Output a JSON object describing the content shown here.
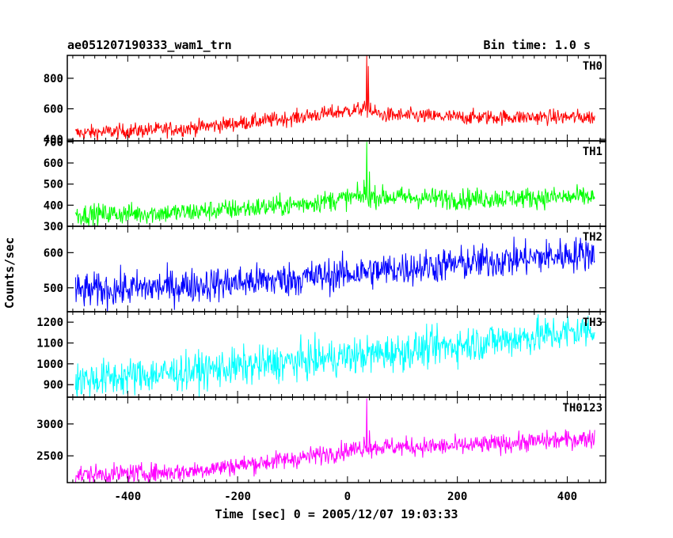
{
  "header": {
    "title": "ae051207190333_wam1_trn",
    "bin_time": "Bin time: 1.0 s"
  },
  "chart_data": {
    "type": "line",
    "xlabel": "Time [sec] 0 = 2005/12/07 19:03:33",
    "ylabel": "Counts/sec",
    "xlim": [
      -510,
      470
    ],
    "x_ticks": [
      -400,
      -200,
      0,
      200,
      400
    ],
    "x_range_data": [
      -495,
      450
    ],
    "panels": [
      {
        "name": "TH0",
        "color": "#ff0000",
        "ylim": [
          390,
          950
        ],
        "y_ticks": [
          400,
          600,
          800
        ],
        "trend": [
          [
            -495,
            440
          ],
          [
            -300,
            470
          ],
          [
            -100,
            540
          ],
          [
            30,
            600
          ],
          [
            60,
            560
          ],
          [
            200,
            545
          ],
          [
            450,
            545
          ]
        ],
        "noise": 25,
        "spike": [
          [
            30,
            620
          ],
          [
            35,
            950
          ],
          [
            38,
            880
          ],
          [
            42,
            640
          ]
        ]
      },
      {
        "name": "TH1",
        "color": "#00ff00",
        "ylim": [
          300,
          705
        ],
        "y_ticks": [
          300,
          400,
          500,
          600,
          700
        ],
        "trend": [
          [
            -495,
            355
          ],
          [
            -300,
            365
          ],
          [
            -100,
            400
          ],
          [
            20,
            440
          ],
          [
            60,
            440
          ],
          [
            200,
            430
          ],
          [
            450,
            440
          ]
        ],
        "noise": 25,
        "spike": [
          [
            30,
            520
          ],
          [
            35,
            700
          ],
          [
            40,
            560
          ]
        ]
      },
      {
        "name": "TH2",
        "color": "#0000ff",
        "ylim": [
          432,
          675
        ],
        "y_ticks": [
          500,
          600
        ],
        "trend": [
          [
            -495,
            490
          ],
          [
            -300,
            505
          ],
          [
            -100,
            525
          ],
          [
            100,
            555
          ],
          [
            300,
            580
          ],
          [
            450,
            600
          ]
        ],
        "noise": 25,
        "spike": []
      },
      {
        "name": "TH3",
        "color": "#00ffff",
        "ylim": [
          840,
          1250
        ],
        "y_ticks": [
          900,
          1000,
          1100,
          1200
        ],
        "trend": [
          [
            -495,
            920
          ],
          [
            -300,
            960
          ],
          [
            -100,
            1010
          ],
          [
            100,
            1060
          ],
          [
            300,
            1120
          ],
          [
            450,
            1165
          ]
        ],
        "noise": 45,
        "spike": []
      },
      {
        "name": "TH0123",
        "color": "#ff00ff",
        "ylim": [
          2080,
          3420
        ],
        "y_ticks": [
          2500,
          3000
        ],
        "trend": [
          [
            -495,
            2200
          ],
          [
            -300,
            2250
          ],
          [
            -100,
            2450
          ],
          [
            25,
            2620
          ],
          [
            60,
            2640
          ],
          [
            200,
            2650
          ],
          [
            450,
            2780
          ]
        ],
        "noise": 75,
        "spike": [
          [
            30,
            2800
          ],
          [
            35,
            3400
          ],
          [
            40,
            2900
          ]
        ]
      }
    ]
  }
}
